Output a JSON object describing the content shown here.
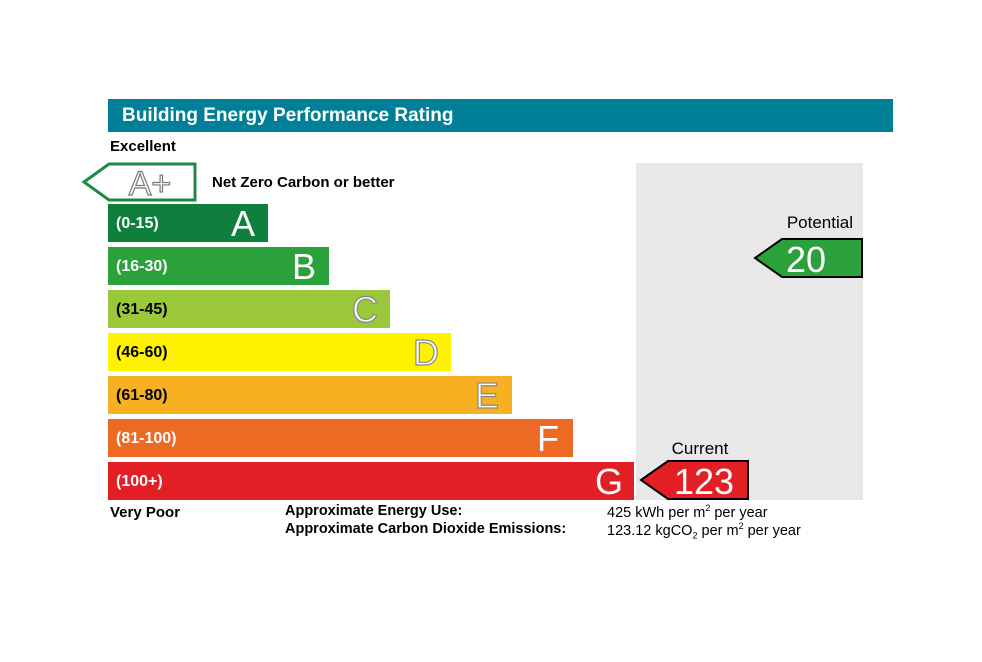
{
  "header": {
    "title": "Building Energy Performance Rating"
  },
  "scale": {
    "top_label": "Excellent",
    "bottom_label": "Very Poor",
    "aplus": {
      "letter": "A+",
      "description": "Net Zero Carbon or better"
    }
  },
  "chart_data": {
    "type": "bar",
    "bands": [
      {
        "letter": "A",
        "range": "(0-15)",
        "min": 0,
        "max": 15,
        "color": "#0e7f3c"
      },
      {
        "letter": "B",
        "range": "(16-30)",
        "min": 16,
        "max": 30,
        "color": "#2aa13a"
      },
      {
        "letter": "C",
        "range": "(31-45)",
        "min": 31,
        "max": 45,
        "color": "#9bc83b"
      },
      {
        "letter": "D",
        "range": "(46-60)",
        "min": 46,
        "max": 60,
        "color": "#fff200"
      },
      {
        "letter": "E",
        "range": "(61-80)",
        "min": 61,
        "max": 80,
        "color": "#f7b022"
      },
      {
        "letter": "F",
        "range": "(81-100)",
        "min": 81,
        "max": 100,
        "color": "#ec6a24"
      },
      {
        "letter": "G",
        "range": "(100+)",
        "min": 101,
        "max": null,
        "color": "#e31e25"
      }
    ],
    "current": {
      "label": "Current",
      "value": 123,
      "band": "G",
      "color": "#e31e25"
    },
    "potential": {
      "label": "Potential",
      "value": 20,
      "band": "B",
      "color": "#2aa13a"
    }
  },
  "footer": {
    "energy_use_label": "Approximate Energy Use:",
    "energy_use_number": "425",
    "energy_use_unit_a": "kWh per m",
    "energy_use_unit_sup": "2",
    "energy_use_unit_b": " per year",
    "co2_label": "Approximate Carbon Dioxide Emissions:",
    "co2_number": "123.12",
    "co2_unit_a": "kgCO",
    "co2_unit_sub": "2",
    "co2_unit_b": " per m",
    "co2_unit_sup": "2",
    "co2_unit_c": " per year"
  }
}
